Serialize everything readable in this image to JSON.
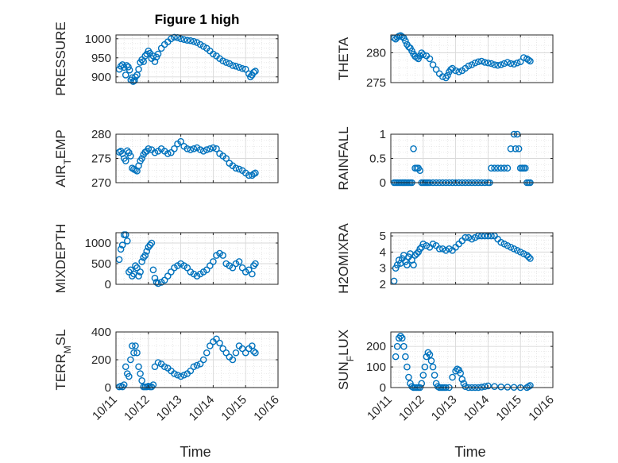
{
  "figure_title": "Figure 1 high",
  "x_axis_label": "Time",
  "x_tick_labels": [
    "10/11",
    "10/12",
    "10/13",
    "10/14",
    "10/15",
    "10/16"
  ],
  "colors": {
    "marker": "#0072BD",
    "grid": "#d9d9d9",
    "axis": "#262626"
  },
  "chart_data": [
    {
      "id": "pressure",
      "type": "scatter",
      "title": "Figure 1 high",
      "ylabel": "PRESSURE",
      "ylabel_sub": "",
      "ylabel_tail": "",
      "ylim": [
        885,
        1010
      ],
      "yticks": [
        900,
        950,
        1000
      ],
      "ytick_labels": [
        "900",
        "950",
        "1000"
      ],
      "grid": true,
      "xlim": [
        0,
        5
      ],
      "x": [
        0.1,
        0.15,
        0.2,
        0.25,
        0.3,
        0.33,
        0.38,
        0.42,
        0.46,
        0.5,
        0.53,
        0.57,
        0.6,
        0.65,
        0.7,
        0.75,
        0.8,
        0.85,
        0.9,
        0.95,
        1.0,
        1.05,
        1.1,
        1.15,
        1.2,
        1.25,
        1.3,
        1.4,
        1.5,
        1.6,
        1.7,
        1.8,
        1.9,
        2.0,
        2.1,
        2.2,
        2.3,
        2.4,
        2.5,
        2.6,
        2.7,
        2.8,
        2.9,
        3.0,
        3.1,
        3.2,
        3.3,
        3.4,
        3.5,
        3.6,
        3.7,
        3.8,
        3.9,
        4.0,
        4.1,
        4.15,
        4.2,
        4.25,
        4.3
      ],
      "y": [
        920,
        928,
        932,
        925,
        905,
        930,
        926,
        918,
        892,
        898,
        888,
        890,
        900,
        905,
        920,
        938,
        945,
        940,
        955,
        960,
        968,
        962,
        948,
        955,
        940,
        952,
        960,
        975,
        985,
        992,
        1000,
        1004,
        1003,
        1000,
        998,
        996,
        995,
        993,
        990,
        985,
        980,
        975,
        968,
        960,
        955,
        948,
        942,
        938,
        935,
        930,
        928,
        925,
        922,
        920,
        908,
        900,
        905,
        912,
        915
      ]
    },
    {
      "id": "theta",
      "type": "scatter",
      "title": "",
      "ylabel": "THETA",
      "ylabel_sub": "",
      "ylabel_tail": "",
      "ylim": [
        275,
        283
      ],
      "yticks": [
        275,
        280
      ],
      "ytick_labels": [
        "275",
        "280"
      ],
      "grid": true,
      "xlim": [
        0,
        5
      ],
      "x": [
        0.1,
        0.15,
        0.2,
        0.25,
        0.3,
        0.35,
        0.4,
        0.45,
        0.5,
        0.55,
        0.6,
        0.65,
        0.7,
        0.75,
        0.8,
        0.85,
        0.9,
        0.95,
        1.0,
        1.1,
        1.2,
        1.3,
        1.4,
        1.5,
        1.6,
        1.7,
        1.75,
        1.8,
        1.85,
        1.9,
        2.0,
        2.1,
        2.2,
        2.3,
        2.4,
        2.5,
        2.6,
        2.7,
        2.8,
        2.9,
        3.0,
        3.1,
        3.2,
        3.3,
        3.4,
        3.5,
        3.6,
        3.7,
        3.8,
        3.9,
        4.0,
        4.1,
        4.2,
        4.25,
        4.3
      ],
      "y": [
        282.5,
        282.3,
        282.6,
        282.8,
        282.9,
        282.7,
        282.5,
        282.0,
        281.4,
        281.0,
        280.8,
        280.3,
        279.8,
        279.4,
        279.2,
        279.0,
        279.5,
        280.0,
        279.7,
        279.5,
        279.0,
        278.0,
        277.2,
        276.5,
        276.0,
        275.8,
        276.2,
        276.8,
        277.2,
        277.4,
        277.0,
        276.8,
        277.0,
        277.4,
        277.8,
        278.0,
        278.3,
        278.5,
        278.6,
        278.4,
        278.3,
        278.2,
        278.0,
        277.9,
        278.0,
        278.2,
        278.4,
        278.2,
        278.1,
        278.3,
        278.5,
        279.2,
        279.0,
        278.8,
        278.6
      ]
    },
    {
      "id": "air_temp",
      "type": "scatter",
      "title": "",
      "ylabel": "AIR",
      "ylabel_sub": "T",
      "ylabel_tail": "EMP",
      "ylim": [
        270,
        280
      ],
      "yticks": [
        270,
        275,
        280
      ],
      "ytick_labels": [
        "270",
        "275",
        "280"
      ],
      "grid": true,
      "xlim": [
        0,
        5
      ],
      "x": [
        0.1,
        0.15,
        0.2,
        0.25,
        0.3,
        0.35,
        0.4,
        0.45,
        0.5,
        0.55,
        0.6,
        0.65,
        0.7,
        0.75,
        0.8,
        0.85,
        0.9,
        0.95,
        1.0,
        1.1,
        1.2,
        1.3,
        1.4,
        1.5,
        1.6,
        1.7,
        1.8,
        1.9,
        2.0,
        2.1,
        2.2,
        2.3,
        2.4,
        2.5,
        2.6,
        2.7,
        2.8,
        2.9,
        3.0,
        3.1,
        3.2,
        3.3,
        3.4,
        3.5,
        3.6,
        3.7,
        3.8,
        3.9,
        4.0,
        4.1,
        4.2,
        4.25,
        4.3
      ],
      "y": [
        276.3,
        276.5,
        276.0,
        275.0,
        274.5,
        276.6,
        276.2,
        275.5,
        273.0,
        272.8,
        272.6,
        272.4,
        273.5,
        274.5,
        275.0,
        275.8,
        276.3,
        276.5,
        277.0,
        276.8,
        276.2,
        276.5,
        277.0,
        276.5,
        276.0,
        276.2,
        277.0,
        278.0,
        278.5,
        277.5,
        277.0,
        276.8,
        277.0,
        277.2,
        276.8,
        276.5,
        276.8,
        277.0,
        277.2,
        277.0,
        276.0,
        275.5,
        275.0,
        274.0,
        273.5,
        273.0,
        272.8,
        272.5,
        272.0,
        271.5,
        271.5,
        271.8,
        272.0
      ]
    },
    {
      "id": "rainfall",
      "type": "scatter",
      "title": "",
      "ylabel": "RAINFALL",
      "ylabel_sub": "",
      "ylabel_tail": "",
      "ylim": [
        0,
        1
      ],
      "yticks": [
        0,
        0.5,
        1
      ],
      "ytick_labels": [
        "0",
        "0.5",
        "1"
      ],
      "grid": true,
      "xlim": [
        0,
        5
      ],
      "x": [
        0.1,
        0.15,
        0.2,
        0.25,
        0.3,
        0.35,
        0.4,
        0.45,
        0.5,
        0.55,
        0.6,
        0.65,
        0.7,
        0.75,
        0.8,
        0.85,
        0.9,
        0.95,
        1.0,
        1.05,
        1.1,
        1.15,
        1.2,
        1.3,
        1.4,
        1.5,
        1.6,
        1.7,
        1.8,
        1.9,
        2.0,
        2.1,
        2.2,
        2.3,
        2.4,
        2.5,
        2.6,
        2.7,
        2.8,
        2.9,
        3.0,
        3.05,
        3.1,
        3.2,
        3.3,
        3.4,
        3.5,
        3.6,
        3.7,
        3.8,
        3.85,
        3.9,
        3.95,
        4.0,
        4.05,
        4.1,
        4.15,
        4.2,
        4.25,
        4.3
      ],
      "y": [
        0,
        0,
        0,
        0,
        0,
        0,
        0,
        0,
        0,
        0,
        0,
        0,
        0.7,
        0.3,
        0.3,
        0.3,
        0.25,
        0,
        0,
        0,
        0,
        0,
        0,
        0,
        0,
        0,
        0,
        0,
        0,
        0,
        0,
        0,
        0,
        0,
        0,
        0,
        0,
        0,
        0,
        0,
        0,
        0,
        0.3,
        0.3,
        0.3,
        0.3,
        0.3,
        0.3,
        0.7,
        1.0,
        0.7,
        1.0,
        0.7,
        0.3,
        0.3,
        0.3,
        0.3,
        0,
        0,
        0
      ]
    },
    {
      "id": "mixdepth",
      "type": "scatter",
      "title": "",
      "ylabel": "MIXDEPTH",
      "ylabel_sub": "",
      "ylabel_tail": "",
      "ylim": [
        0,
        1250
      ],
      "yticks": [
        0,
        500,
        1000
      ],
      "ytick_labels": [
        "0",
        "500",
        "1000"
      ],
      "grid": true,
      "xlim": [
        0,
        5
      ],
      "x": [
        0.1,
        0.15,
        0.2,
        0.25,
        0.3,
        0.35,
        0.4,
        0.45,
        0.5,
        0.55,
        0.6,
        0.65,
        0.7,
        0.75,
        0.8,
        0.85,
        0.9,
        0.95,
        1.0,
        1.05,
        1.1,
        1.15,
        1.2,
        1.25,
        1.3,
        1.4,
        1.5,
        1.6,
        1.7,
        1.8,
        1.9,
        2.0,
        2.1,
        2.2,
        2.3,
        2.4,
        2.5,
        2.6,
        2.7,
        2.8,
        2.9,
        3.0,
        3.1,
        3.2,
        3.3,
        3.4,
        3.5,
        3.6,
        3.7,
        3.8,
        3.9,
        4.0,
        4.1,
        4.2,
        4.25,
        4.3
      ],
      "y": [
        600,
        850,
        950,
        1200,
        1200,
        1050,
        300,
        350,
        200,
        250,
        450,
        400,
        200,
        300,
        550,
        650,
        700,
        800,
        900,
        950,
        1000,
        350,
        150,
        50,
        20,
        50,
        100,
        200,
        300,
        400,
        450,
        500,
        450,
        400,
        300,
        250,
        200,
        250,
        300,
        350,
        450,
        550,
        700,
        750,
        700,
        500,
        450,
        400,
        500,
        550,
        400,
        300,
        350,
        250,
        450,
        500
      ]
    },
    {
      "id": "h2omixra",
      "type": "scatter",
      "title": "",
      "ylabel": "H2OMIXRA",
      "ylabel_sub": "",
      "ylabel_tail": "",
      "ylim": [
        2,
        5.2
      ],
      "yticks": [
        2,
        3,
        4,
        5
      ],
      "ytick_labels": [
        "2",
        "3",
        "4",
        "5"
      ],
      "grid": true,
      "xlim": [
        0,
        5
      ],
      "x": [
        0.1,
        0.15,
        0.2,
        0.25,
        0.3,
        0.35,
        0.4,
        0.45,
        0.5,
        0.55,
        0.6,
        0.65,
        0.7,
        0.75,
        0.8,
        0.85,
        0.9,
        0.95,
        1.0,
        1.1,
        1.2,
        1.3,
        1.4,
        1.5,
        1.6,
        1.7,
        1.8,
        1.9,
        2.0,
        2.1,
        2.2,
        2.3,
        2.4,
        2.5,
        2.6,
        2.7,
        2.8,
        2.9,
        3.0,
        3.1,
        3.2,
        3.3,
        3.4,
        3.5,
        3.6,
        3.7,
        3.8,
        3.9,
        4.0,
        4.1,
        4.2,
        4.25,
        4.3
      ],
      "y": [
        2.2,
        3.0,
        3.2,
        3.5,
        3.3,
        3.6,
        3.8,
        3.4,
        3.2,
        3.7,
        3.9,
        3.5,
        3.2,
        3.8,
        3.9,
        4.0,
        4.2,
        4.3,
        4.5,
        4.4,
        4.3,
        4.5,
        4.4,
        4.2,
        4.2,
        4.1,
        4.2,
        4.1,
        4.3,
        4.5,
        4.7,
        4.9,
        4.9,
        4.8,
        4.9,
        5.0,
        5.0,
        5.0,
        5.0,
        5.0,
        5.0,
        4.8,
        4.6,
        4.5,
        4.4,
        4.3,
        4.2,
        4.1,
        4.0,
        3.9,
        3.8,
        3.7,
        3.6
      ]
    },
    {
      "id": "terr_msl",
      "type": "scatter",
      "title": "",
      "ylabel": "TERR",
      "ylabel_sub": "M",
      "ylabel_tail": "SL",
      "ylim": [
        0,
        400
      ],
      "yticks": [
        0,
        200,
        400
      ],
      "ytick_labels": [
        "0",
        "200",
        "400"
      ],
      "grid": true,
      "xlim": [
        0,
        5
      ],
      "x": [
        0.1,
        0.15,
        0.2,
        0.25,
        0.3,
        0.35,
        0.4,
        0.45,
        0.5,
        0.55,
        0.6,
        0.65,
        0.7,
        0.75,
        0.8,
        0.85,
        0.9,
        0.95,
        1.0,
        1.05,
        1.1,
        1.15,
        1.2,
        1.3,
        1.4,
        1.5,
        1.6,
        1.7,
        1.8,
        1.9,
        2.0,
        2.1,
        2.2,
        2.3,
        2.4,
        2.5,
        2.6,
        2.7,
        2.8,
        2.9,
        3.0,
        3.1,
        3.2,
        3.3,
        3.4,
        3.5,
        3.6,
        3.7,
        3.8,
        3.9,
        4.0,
        4.1,
        4.2,
        4.25,
        4.3
      ],
      "y": [
        5,
        10,
        5,
        20,
        150,
        100,
        80,
        200,
        300,
        250,
        300,
        250,
        150,
        100,
        50,
        5,
        5,
        5,
        10,
        5,
        5,
        20,
        150,
        180,
        170,
        150,
        140,
        120,
        100,
        90,
        80,
        90,
        100,
        120,
        150,
        160,
        170,
        200,
        250,
        300,
        330,
        350,
        320,
        280,
        250,
        220,
        200,
        250,
        300,
        280,
        250,
        280,
        300,
        260,
        250
      ]
    },
    {
      "id": "sun_flux",
      "type": "scatter",
      "title": "",
      "ylabel": "SUN",
      "ylabel_sub": "F",
      "ylabel_tail": "LUX",
      "ylim": [
        0,
        270
      ],
      "yticks": [
        0,
        100,
        200
      ],
      "ytick_labels": [
        "0",
        "100",
        "200"
      ],
      "grid": true,
      "xlim": [
        0,
        5
      ],
      "x": [
        0.15,
        0.2,
        0.25,
        0.3,
        0.35,
        0.4,
        0.45,
        0.5,
        0.55,
        0.6,
        0.65,
        0.7,
        0.75,
        0.8,
        0.85,
        0.9,
        0.95,
        1.0,
        1.05,
        1.1,
        1.15,
        1.2,
        1.25,
        1.3,
        1.35,
        1.4,
        1.45,
        1.5,
        1.55,
        1.6,
        1.65,
        1.7,
        1.8,
        1.9,
        2.0,
        2.05,
        2.1,
        2.15,
        2.2,
        2.25,
        2.3,
        2.4,
        2.5,
        2.6,
        2.7,
        2.8,
        2.9,
        3.0,
        3.2,
        3.4,
        3.6,
        3.8,
        4.0,
        4.2,
        4.25,
        4.3
      ],
      "y": [
        150,
        200,
        240,
        250,
        240,
        200,
        150,
        100,
        50,
        20,
        5,
        0,
        0,
        0,
        0,
        0,
        20,
        60,
        100,
        150,
        170,
        160,
        130,
        100,
        60,
        20,
        5,
        0,
        0,
        0,
        0,
        0,
        0,
        50,
        80,
        90,
        85,
        70,
        40,
        20,
        5,
        0,
        0,
        0,
        0,
        2,
        5,
        8,
        5,
        3,
        2,
        1,
        0,
        0,
        5,
        10
      ]
    }
  ]
}
